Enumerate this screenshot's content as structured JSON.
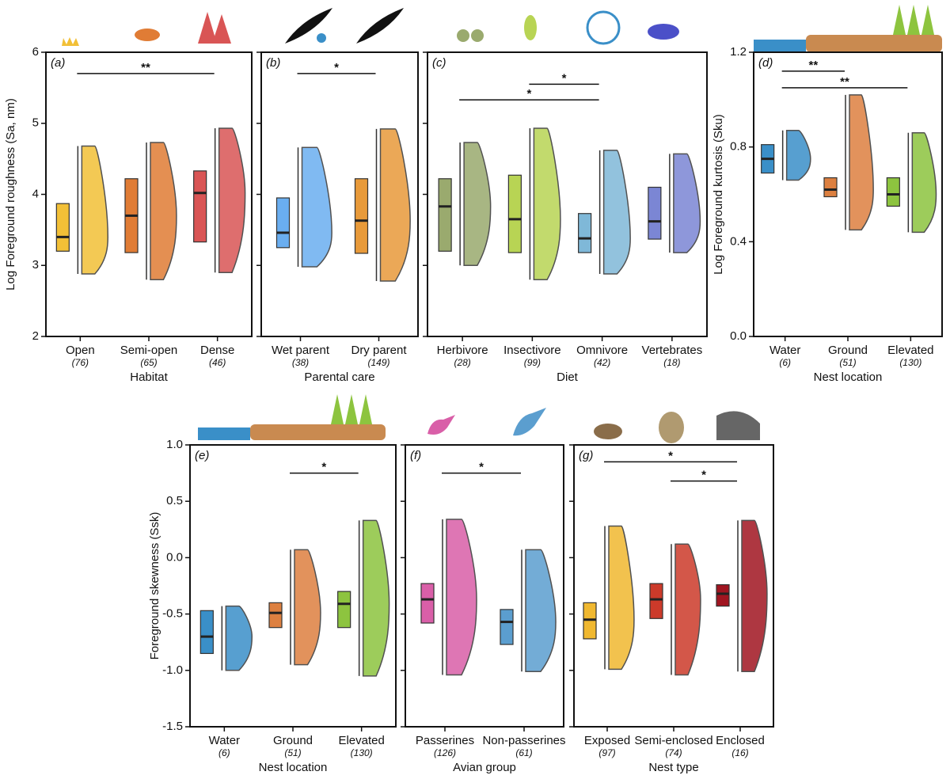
{
  "chart_data": [
    {
      "type": "raincloud",
      "panel": "(a)",
      "ylabel": "Log Foreground roughness (Sa, nm)",
      "xlabel": "Habitat",
      "categories": [
        "Open",
        "Semi-open",
        "Dense"
      ],
      "counts": [
        "(76)",
        "(65)",
        "(46)"
      ],
      "colors": [
        "#f2c037",
        "#e07c35",
        "#d95555"
      ],
      "q1": [
        3.2,
        3.18,
        3.33
      ],
      "median": [
        3.4,
        3.7,
        4.02
      ],
      "q3": [
        3.87,
        4.22,
        4.33
      ],
      "lo": [
        2.88,
        2.8,
        2.9
      ],
      "hi": [
        4.68,
        4.73,
        4.93
      ],
      "significance": [
        {
          "from": 0,
          "to": 2,
          "y": 5.7,
          "label": "**"
        }
      ],
      "ylim": [
        2,
        6
      ],
      "yticks": [
        2,
        3,
        4,
        5,
        6
      ],
      "ytick_labels": true
    },
    {
      "type": "raincloud",
      "panel": "(b)",
      "xlabel": "Parental care",
      "categories": [
        "Wet parent",
        "Dry parent"
      ],
      "counts": [
        "(38)",
        "(149)"
      ],
      "colors": [
        "#6aaef0",
        "#e89a3a"
      ],
      "q1": [
        3.25,
        3.17
      ],
      "median": [
        3.46,
        3.63
      ],
      "q3": [
        3.95,
        4.22
      ],
      "lo": [
        2.98,
        2.78
      ],
      "hi": [
        4.66,
        4.92
      ],
      "significance": [
        {
          "from": 0,
          "to": 1,
          "y": 5.7,
          "label": "*"
        }
      ],
      "ylim": [
        2,
        6
      ],
      "yticks": [
        2,
        3,
        4,
        5,
        6
      ],
      "ytick_labels": false
    },
    {
      "type": "raincloud",
      "panel": "(c)",
      "xlabel": "Diet",
      "categories": [
        "Herbivore",
        "Insectivore",
        "Omnivore",
        "Vertebrates"
      ],
      "counts": [
        "(28)",
        "(99)",
        "(42)",
        "(18)"
      ],
      "colors": [
        "#9aaa6e",
        "#b8d454",
        "#7fb8d8",
        "#7b86d4"
      ],
      "q1": [
        3.2,
        3.18,
        3.18,
        3.37
      ],
      "median": [
        3.83,
        3.65,
        3.38,
        3.62
      ],
      "q3": [
        4.22,
        4.27,
        3.73,
        4.1
      ],
      "lo": [
        3.0,
        2.8,
        2.88,
        3.18
      ],
      "hi": [
        4.73,
        4.93,
        4.62,
        4.57
      ],
      "significance": [
        {
          "from": 1,
          "to": 2,
          "y": 5.55,
          "label": "*"
        },
        {
          "from": 0,
          "to": 2,
          "y": 5.33,
          "label": "*"
        }
      ],
      "ylim": [
        2,
        6
      ],
      "yticks": [
        2,
        3,
        4,
        5,
        6
      ],
      "ytick_labels": false
    },
    {
      "type": "raincloud",
      "panel": "(d)",
      "ylabel": "Log Foreground kurtosis (Sku)",
      "xlabel": "Nest location",
      "categories": [
        "Water",
        "Ground",
        "Elevated"
      ],
      "counts": [
        "(6)",
        "(51)",
        "(130)"
      ],
      "colors": [
        "#3a8fc8",
        "#dd8040",
        "#8dc43f"
      ],
      "q1": [
        0.69,
        0.59,
        0.55
      ],
      "median": [
        0.75,
        0.62,
        0.6
      ],
      "q3": [
        0.81,
        0.67,
        0.67
      ],
      "lo": [
        0.66,
        0.45,
        0.44
      ],
      "hi": [
        0.87,
        1.02,
        0.86
      ],
      "significance": [
        {
          "from": 0,
          "to": 1,
          "y": 1.12,
          "label": "**"
        },
        {
          "from": 0,
          "to": 2,
          "y": 1.05,
          "label": "**"
        }
      ],
      "ylim": [
        0,
        1.2
      ],
      "yticks": [
        {
          "value": 0,
          "label": "0.0"
        },
        0.4,
        0.8,
        1.2
      ],
      "ytick_labels": true
    },
    {
      "type": "raincloud",
      "panel": "(e)",
      "ylabel": "Foreground skewness (Ssk)",
      "xlabel": "Nest location",
      "categories": [
        "Water",
        "Ground",
        "Elevated"
      ],
      "counts": [
        "(6)",
        "(51)",
        "(130)"
      ],
      "colors": [
        "#3a8fc8",
        "#dd8040",
        "#8dc43f"
      ],
      "q1": [
        -0.85,
        -0.62,
        -0.62
      ],
      "median": [
        -0.7,
        -0.49,
        -0.41
      ],
      "q3": [
        -0.47,
        -0.4,
        -0.3
      ],
      "lo": [
        -1.0,
        -0.95,
        -1.05
      ],
      "hi": [
        -0.43,
        0.07,
        0.33
      ],
      "significance": [
        {
          "from": 1,
          "to": 2,
          "y": 0.75,
          "label": "*"
        }
      ],
      "ylim": [
        -1.5,
        1
      ],
      "yticks": [
        -1.5,
        {
          "value": -1,
          "label": "-1.0"
        },
        -0.5,
        {
          "value": 0,
          "label": "0.0"
        },
        0.5,
        {
          "value": 1,
          "label": "1.0"
        }
      ],
      "ytick_labels": true
    },
    {
      "type": "raincloud",
      "panel": "(f)",
      "xlabel": "Avian group",
      "categories": [
        "Passerines",
        "Non-passerines"
      ],
      "counts": [
        "(126)",
        "(61)"
      ],
      "colors": [
        "#d95fa8",
        "#5b9ecf"
      ],
      "q1": [
        -0.58,
        -0.77
      ],
      "median": [
        -0.37,
        -0.57
      ],
      "q3": [
        -0.23,
        -0.46
      ],
      "lo": [
        -1.04,
        -1.01
      ],
      "hi": [
        0.34,
        0.07
      ],
      "significance": [
        {
          "from": 0,
          "to": 1,
          "y": 0.75,
          "label": "*"
        }
      ],
      "ylim": [
        -1.5,
        1
      ],
      "yticks": [
        -1.5,
        {
          "value": -1,
          "label": "-1.0"
        },
        -0.5,
        {
          "value": 0,
          "label": "0.0"
        },
        0.5,
        {
          "value": 1,
          "label": "1.0"
        }
      ],
      "ytick_labels": false
    },
    {
      "type": "raincloud",
      "panel": "(g)",
      "xlabel": "Nest type",
      "categories": [
        "Exposed",
        "Semi-enclosed",
        "Enclosed"
      ],
      "counts": [
        "(97)",
        "(74)",
        "(16)"
      ],
      "colors": [
        "#f0b830",
        "#cc3a2a",
        "#a01520"
      ],
      "q1": [
        -0.72,
        -0.54,
        -0.43
      ],
      "median": [
        -0.55,
        -0.37,
        -0.32
      ],
      "q3": [
        -0.4,
        -0.23,
        -0.24
      ],
      "lo": [
        -0.99,
        -1.04,
        -1.01
      ],
      "hi": [
        0.28,
        0.12,
        0.33
      ],
      "significance": [
        {
          "from": 0,
          "to": 2,
          "y": 0.85,
          "label": "*"
        },
        {
          "from": 1,
          "to": 2,
          "y": 0.68,
          "label": "*"
        }
      ],
      "ylim": [
        -1.5,
        1
      ],
      "yticks": [
        -1.5,
        {
          "value": -1,
          "label": "-1.0"
        },
        -0.5,
        {
          "value": 0,
          "label": "0.0"
        },
        0.5,
        {
          "value": 1,
          "label": "1.0"
        }
      ],
      "ytick_labels": false
    }
  ]
}
